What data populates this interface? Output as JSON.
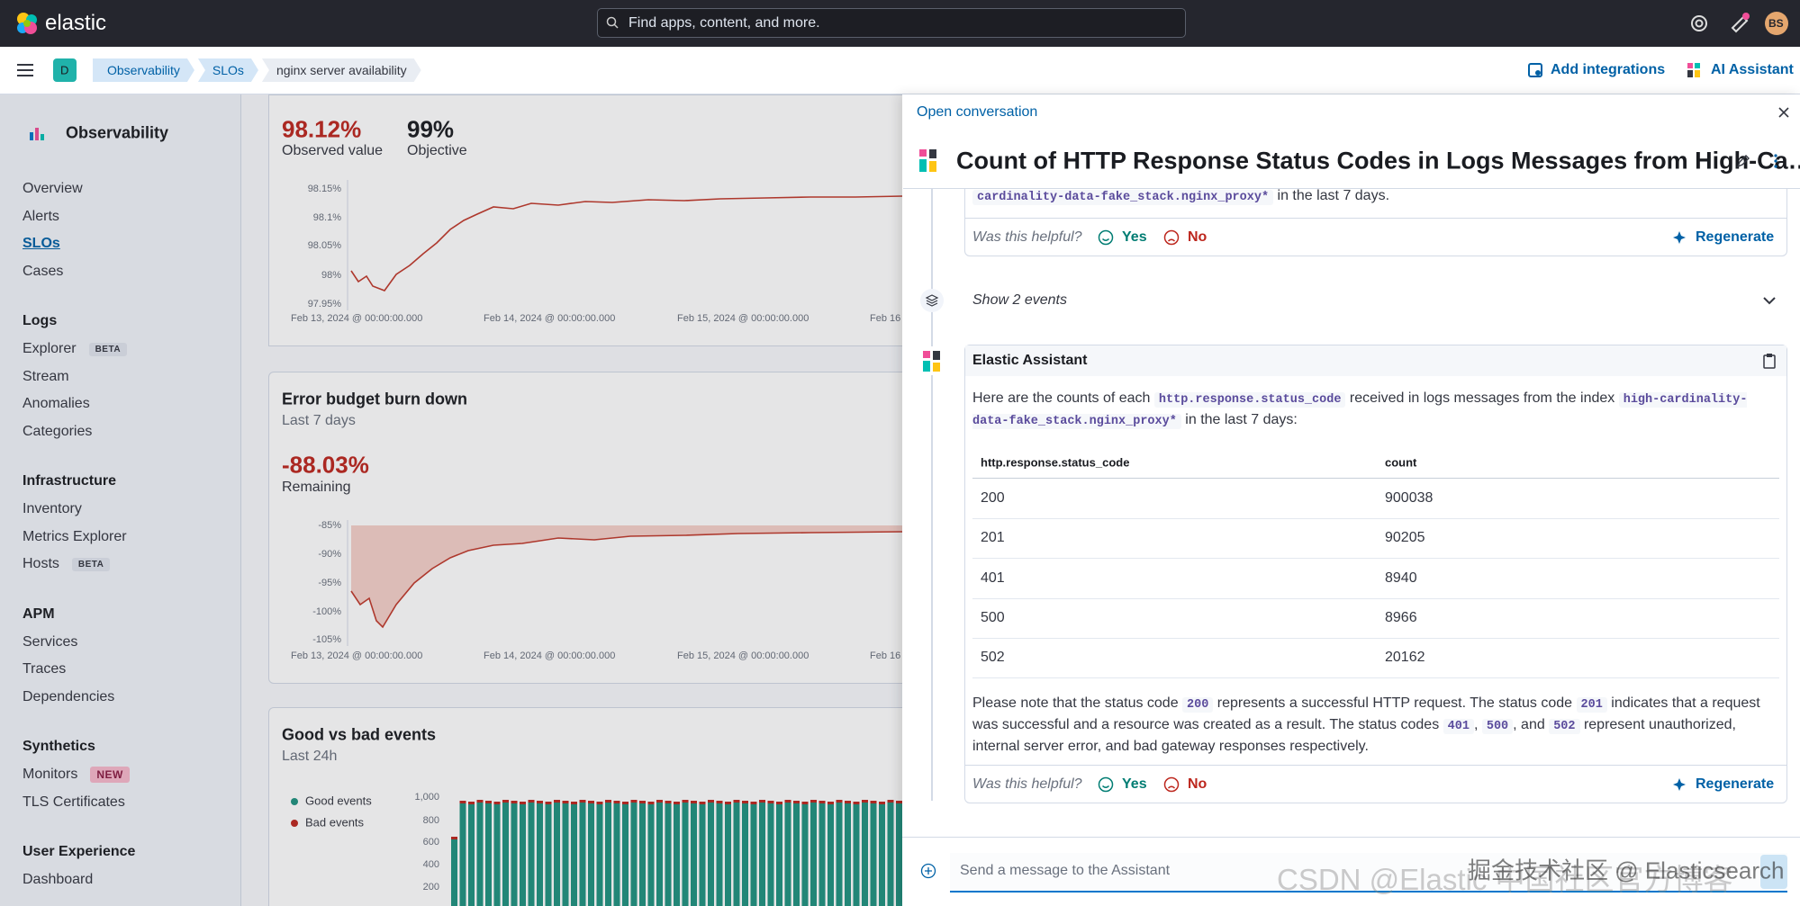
{
  "header": {
    "logo": "elastic",
    "search": "Find apps, content, and more.",
    "avatar": "BS"
  },
  "nav": {
    "space": "D",
    "breadcrumbs": [
      "Observability",
      "SLOs",
      "nginx server availability"
    ],
    "add_integrations": "Add integrations",
    "ai_assistant": "AI Assistant"
  },
  "sidebar": {
    "title": "Observability",
    "links": [
      {
        "label": "Overview"
      },
      {
        "label": "Alerts"
      },
      {
        "label": "SLOs",
        "active": true
      },
      {
        "label": "Cases"
      }
    ],
    "groups": [
      {
        "title": "Logs",
        "items": [
          {
            "label": "Explorer",
            "badge": "BETA"
          },
          {
            "label": "Stream"
          },
          {
            "label": "Anomalies"
          },
          {
            "label": "Categories"
          }
        ]
      },
      {
        "title": "Infrastructure",
        "items": [
          {
            "label": "Inventory"
          },
          {
            "label": "Metrics Explorer"
          },
          {
            "label": "Hosts",
            "badge": "BETA"
          }
        ]
      },
      {
        "title": "APM",
        "items": [
          {
            "label": "Services"
          },
          {
            "label": "Traces"
          },
          {
            "label": "Dependencies"
          }
        ]
      },
      {
        "title": "Synthetics",
        "items": [
          {
            "label": "Monitors",
            "badge": "NEW"
          },
          {
            "label": "TLS Certificates"
          }
        ]
      },
      {
        "title": "User Experience",
        "items": [
          {
            "label": "Dashboard"
          }
        ]
      }
    ]
  },
  "slo": {
    "observed_value": "98.12%",
    "observed_label": "Observed value",
    "objective_value": "99%",
    "objective_label": "Objective",
    "yticks": [
      "98.15%",
      "98.1%",
      "98.05%",
      "98%",
      "97.95%"
    ],
    "xticks": [
      "Feb 13, 2024 @ 00:00:00.000",
      "Feb 14, 2024 @ 00:00:00.000",
      "Feb 15, 2024 @ 00:00:00.000",
      "Feb 16"
    ]
  },
  "burn_down": {
    "title": "Error budget burn down",
    "subtitle": "Last 7 days",
    "value": "-88.03%",
    "label": "Remaining",
    "yticks": [
      "-85%",
      "-90%",
      "-95%",
      "-100%",
      "-105%"
    ],
    "xticks": [
      "Feb 13, 2024 @ 00:00:00.000",
      "Feb 14, 2024 @ 00:00:00.000",
      "Feb 15, 2024 @ 00:00:00.000",
      "Feb 16"
    ]
  },
  "events": {
    "title": "Good vs bad events",
    "subtitle": "Last 24h",
    "legend": [
      {
        "name": "Good events",
        "color": "#209280"
      },
      {
        "name": "Bad events",
        "color": "#bd271e"
      }
    ],
    "yticks": [
      "1,000",
      "800",
      "600",
      "400",
      "200"
    ]
  },
  "conversation": {
    "open": "Open conversation",
    "title": "Count of HTTP Response Status Codes in Logs Messages from High-Ca…",
    "previous_tail": [
      {
        "code": "cardinality-data-fake_stack.nginx_proxy*"
      },
      {
        "text": " in the last 7 days."
      }
    ],
    "feedback": {
      "question": "Was this helpful?",
      "yes": "Yes",
      "no": "No",
      "regenerate": "Regenerate"
    },
    "events": "Show 2 events",
    "reply": {
      "author": "Elastic Assistant",
      "intro": [
        {
          "text": "Here are the counts of each "
        },
        {
          "code": "http.response.status_code"
        },
        {
          "text": " received in logs messages from the index "
        },
        {
          "code": "high-cardinality-data-fake_stack.nginx_proxy*"
        },
        {
          "text": " in the last 7 days:"
        }
      ],
      "table": {
        "columns": [
          "http.response.status_code",
          "count"
        ],
        "rows": [
          [
            200,
            900038
          ],
          [
            201,
            90205
          ],
          [
            401,
            8940
          ],
          [
            500,
            8966
          ],
          [
            502,
            20162
          ]
        ]
      },
      "note": [
        {
          "text": "Please note that the status code "
        },
        {
          "code": "200"
        },
        {
          "text": " represents a successful HTTP request. The status code "
        },
        {
          "code": "201"
        },
        {
          "text": " indicates that a request was successful and a resource was created as a result. The status codes "
        },
        {
          "code": "401"
        },
        {
          "text": ", "
        },
        {
          "code": "500"
        },
        {
          "text": ", and "
        },
        {
          "code": "502"
        },
        {
          "text": " represent unauthorized, internal server error, and bad gateway responses respectively."
        }
      ]
    },
    "input": "Send a message to the Assistant"
  },
  "watermark": [
    "CSDN @Elastic 中国社区官方博客",
    "掘金技术社区 @ Elasticsearch"
  ]
}
